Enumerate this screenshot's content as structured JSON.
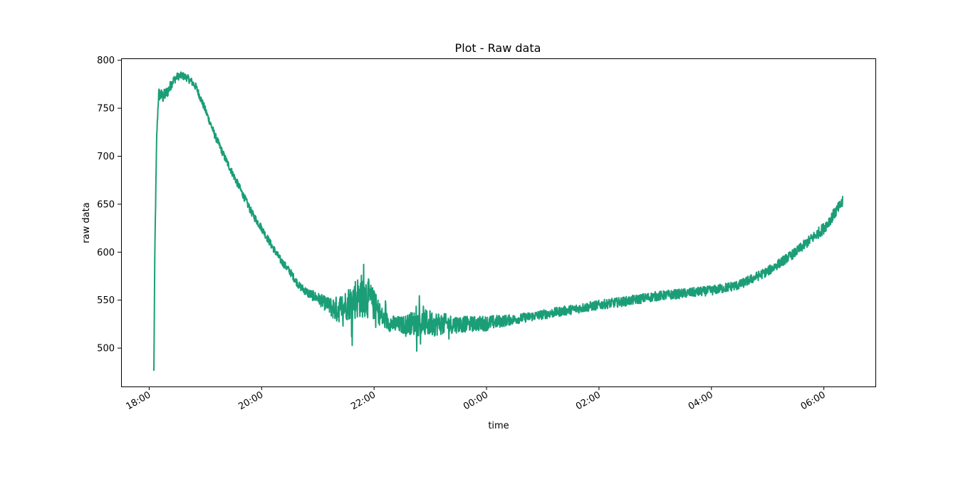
{
  "chart_data": {
    "type": "line",
    "title": "Plot - Raw data",
    "xlabel": "time",
    "ylabel": "raw data",
    "xlim": [
      "17:30",
      "06:55"
    ],
    "ylim": [
      460,
      802
    ],
    "x_ticks": [
      "18:00",
      "20:00",
      "22:00",
      "00:00",
      "02:00",
      "04:00",
      "06:00"
    ],
    "y_ticks": [
      500,
      550,
      600,
      650,
      700,
      750,
      800
    ],
    "grid": false,
    "series": [
      {
        "color": "#1b9e77",
        "x": [
          "18:05",
          "18:06",
          "18:08",
          "18:10",
          "18:15",
          "18:20",
          "18:25",
          "18:30",
          "18:35",
          "18:40",
          "18:45",
          "18:50",
          "18:55",
          "19:00",
          "19:10",
          "19:20",
          "19:30",
          "19:40",
          "19:50",
          "20:00",
          "20:10",
          "20:20",
          "20:30",
          "20:40",
          "20:50",
          "21:00",
          "21:10",
          "21:20",
          "21:30",
          "21:40",
          "21:50",
          "22:00",
          "22:10",
          "22:20",
          "22:30",
          "22:40",
          "22:50",
          "23:00",
          "23:20",
          "23:40",
          "00:00",
          "00:30",
          "01:00",
          "01:30",
          "02:00",
          "02:30",
          "03:00",
          "03:30",
          "04:00",
          "04:30",
          "05:00",
          "05:30",
          "06:00",
          "06:20"
        ],
        "values": [
          476,
          600,
          720,
          765,
          762,
          768,
          778,
          783,
          784,
          782,
          778,
          772,
          760,
          748,
          722,
          700,
          680,
          660,
          640,
          625,
          608,
          592,
          580,
          565,
          557,
          552,
          545,
          540,
          545,
          552,
          556,
          545,
          530,
          525,
          524,
          526,
          526,
          526,
          525,
          525,
          526,
          530,
          535,
          540,
          545,
          549,
          554,
          557,
          560,
          566,
          580,
          600,
          625,
          652
        ],
        "spread": [
          3,
          3,
          4,
          7,
          7,
          6,
          5,
          4,
          4,
          4,
          4,
          4,
          4,
          4,
          4,
          4,
          4,
          4,
          4,
          4,
          4,
          4,
          4,
          4,
          5,
          6,
          8,
          14,
          16,
          22,
          24,
          16,
          10,
          9,
          9,
          12,
          14,
          14,
          10,
          8,
          8,
          5,
          5,
          5,
          5,
          5,
          5,
          5,
          5,
          5,
          5,
          5,
          6,
          6
        ]
      }
    ]
  }
}
